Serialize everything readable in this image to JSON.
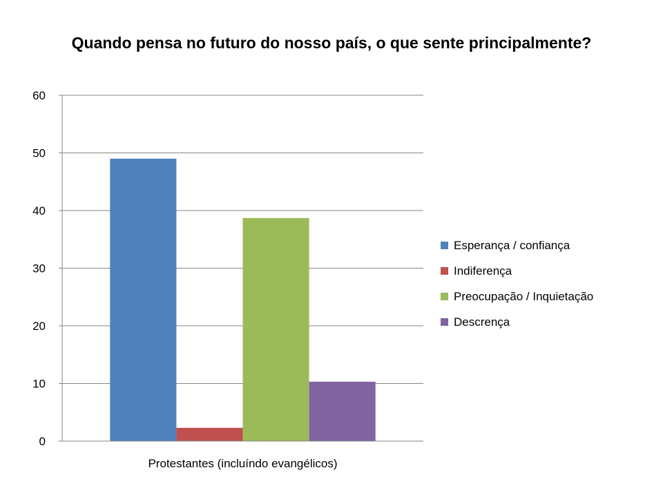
{
  "chart_data": {
    "type": "bar",
    "title": "Quando pensa no futuro do nosso país, o que sente principalmente?",
    "categories": [
      "Protestantes (incluíndo evangélicos)"
    ],
    "series": [
      {
        "name": "Esperança / confiança",
        "values": [
          49
        ],
        "color": "#4F81BD"
      },
      {
        "name": "Indiferença",
        "values": [
          2.3
        ],
        "color": "#C0504D"
      },
      {
        "name": "Preocupação / Inquietação",
        "values": [
          38.7
        ],
        "color": "#9BBB59"
      },
      {
        "name": "Descrença",
        "values": [
          10.3
        ],
        "color": "#8064A2"
      }
    ],
    "xlabel": "",
    "ylabel": "",
    "ylim": [
      0,
      60
    ],
    "yticks": [
      0,
      10,
      20,
      30,
      40,
      50,
      60
    ],
    "grid": true,
    "legend_position": "right"
  }
}
